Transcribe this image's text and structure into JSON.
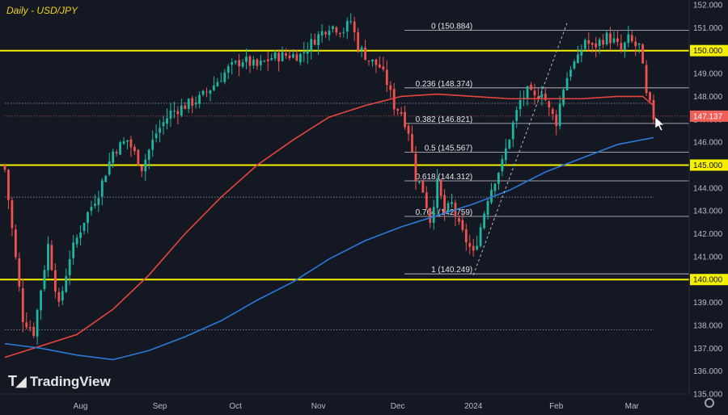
{
  "chart_data": {
    "type": "candlestick",
    "title": "Daily - USD/JPY",
    "ylim": [
      135.0,
      152.0
    ],
    "yticks": [
      "152.000",
      "151.000",
      "150.000",
      "149.000",
      "148.000",
      "147.000",
      "146.000",
      "145.000",
      "144.000",
      "143.000",
      "142.000",
      "141.000",
      "140.000",
      "139.000",
      "138.000",
      "137.000",
      "136.000",
      "135.000"
    ],
    "xlabels": [
      {
        "label": "Aug",
        "index": 21
      },
      {
        "label": "Sep",
        "index": 43
      },
      {
        "label": "Oct",
        "index": 64
      },
      {
        "label": "Nov",
        "index": 87
      },
      {
        "label": "Dec",
        "index": 109
      },
      {
        "label": "2024",
        "index": 130
      },
      {
        "label": "Feb",
        "index": 153
      },
      {
        "label": "Mar",
        "index": 174
      }
    ],
    "candle_count": 181,
    "price_path": [
      [
        0,
        144.8
      ],
      [
        5,
        138.3
      ],
      [
        8,
        137.7
      ],
      [
        12,
        141.5
      ],
      [
        15,
        138.8
      ],
      [
        18,
        141.0
      ],
      [
        22,
        142.6
      ],
      [
        26,
        143.8
      ],
      [
        30,
        145.6
      ],
      [
        34,
        146.1
      ],
      [
        38,
        144.9
      ],
      [
        42,
        146.4
      ],
      [
        46,
        147.3
      ],
      [
        50,
        147.6
      ],
      [
        54,
        147.9
      ],
      [
        58,
        148.5
      ],
      [
        62,
        149.2
      ],
      [
        66,
        149.6
      ],
      [
        70,
        149.3
      ],
      [
        74,
        149.7
      ],
      [
        78,
        149.8
      ],
      [
        82,
        149.8
      ],
      [
        86,
        150.5
      ],
      [
        90,
        151.1
      ],
      [
        94,
        150.9
      ],
      [
        96,
        151.3
      ],
      [
        98,
        150.2
      ],
      [
        101,
        149.6
      ],
      [
        104,
        149.3
      ],
      [
        106,
        148.6
      ],
      [
        108,
        147.6
      ],
      [
        110,
        147.3
      ],
      [
        112,
        146.5
      ],
      [
        114,
        144.5
      ],
      [
        116,
        143.9
      ],
      [
        118,
        142.6
      ],
      [
        120,
        144.2
      ],
      [
        122,
        142.9
      ],
      [
        124,
        143.3
      ],
      [
        126,
        142.3
      ],
      [
        128,
        141.7
      ],
      [
        130,
        141.1
      ],
      [
        132,
        142.3
      ],
      [
        134,
        143.6
      ],
      [
        136,
        144.4
      ],
      [
        138,
        145.1
      ],
      [
        141,
        146.8
      ],
      [
        143,
        147.8
      ],
      [
        145,
        148.2
      ],
      [
        147,
        147.9
      ],
      [
        149,
        148.3
      ],
      [
        151,
        147.4
      ],
      [
        153,
        146.9
      ],
      [
        155,
        148.4
      ],
      [
        157,
        149.3
      ],
      [
        159,
        149.6
      ],
      [
        161,
        150.5
      ],
      [
        163,
        150.1
      ],
      [
        165,
        150.4
      ],
      [
        167,
        150.6
      ],
      [
        169,
        150.4
      ],
      [
        171,
        150.0
      ],
      [
        173,
        150.5
      ],
      [
        175,
        150.2
      ],
      [
        176,
        150.2
      ],
      [
        177,
        149.2
      ],
      [
        178,
        148.0
      ],
      [
        179,
        147.6
      ],
      [
        180,
        147.1
      ]
    ],
    "ma_red": [
      [
        0,
        136.6
      ],
      [
        10,
        137.1
      ],
      [
        20,
        137.6
      ],
      [
        30,
        138.7
      ],
      [
        40,
        140.2
      ],
      [
        50,
        142.0
      ],
      [
        60,
        143.6
      ],
      [
        70,
        145.0
      ],
      [
        80,
        146.1
      ],
      [
        90,
        147.1
      ],
      [
        100,
        147.6
      ],
      [
        110,
        148.0
      ],
      [
        120,
        148.1
      ],
      [
        130,
        148.0
      ],
      [
        140,
        147.9
      ],
      [
        150,
        147.9
      ],
      [
        160,
        147.9
      ],
      [
        170,
        148.0
      ],
      [
        177,
        148.0
      ],
      [
        180,
        147.6
      ]
    ],
    "ma_blue": [
      [
        0,
        137.2
      ],
      [
        10,
        137.0
      ],
      [
        20,
        136.7
      ],
      [
        30,
        136.5
      ],
      [
        40,
        136.9
      ],
      [
        50,
        137.5
      ],
      [
        60,
        138.2
      ],
      [
        70,
        139.1
      ],
      [
        80,
        139.9
      ],
      [
        90,
        140.9
      ],
      [
        100,
        141.7
      ],
      [
        110,
        142.3
      ],
      [
        120,
        142.8
      ],
      [
        130,
        143.3
      ],
      [
        140,
        143.9
      ],
      [
        150,
        144.7
      ],
      [
        160,
        145.3
      ],
      [
        170,
        145.9
      ],
      [
        180,
        146.2
      ]
    ],
    "key_levels": [
      {
        "value": 150.0,
        "label": "150.000"
      },
      {
        "value": 145.0,
        "label": "145.000"
      },
      {
        "value": 140.0,
        "label": "140.000"
      }
    ],
    "current_price": {
      "value": 147.137,
      "label": "147.137"
    },
    "fibonacci": [
      {
        "ratio": "0",
        "value": 150.884,
        "label": "0 (150.884)"
      },
      {
        "ratio": "0.236",
        "value": 148.374,
        "label": "0.236 (148.374)"
      },
      {
        "ratio": "0.382",
        "value": 146.821,
        "label": "0.382 (146.821)"
      },
      {
        "ratio": "0.5",
        "value": 145.567,
        "label": "0.5 (145.567)"
      },
      {
        "ratio": "0.618",
        "value": 144.312,
        "label": "0.618 (144.312)"
      },
      {
        "ratio": "0.764",
        "value": 142.759,
        "label": "0.764 (142.759)"
      },
      {
        "ratio": "1",
        "value": 140.249,
        "label": "1 (140.249)"
      }
    ],
    "fib_start_index": 130,
    "fib_end_index": 180,
    "dotted_levels": [
      147.7,
      143.6,
      137.8
    ],
    "dotted_level_span": [
      0,
      180
    ],
    "trendline": {
      "start": [
        130,
        140.2
      ],
      "end": [
        156,
        151.2
      ]
    },
    "grid": false,
    "colors": {
      "up": "#1eb6a2",
      "down": "#ef5350",
      "ma_red": "#e8453c",
      "ma_blue": "#2a79d8",
      "key_level": "#f5f000",
      "price_label": "#f05e57",
      "background": "#141823",
      "text": "#b8bcc6"
    }
  },
  "brand": {
    "name": "TradingView",
    "icon": "tradingview-logo-icon"
  },
  "settings_icon": "gear-icon"
}
